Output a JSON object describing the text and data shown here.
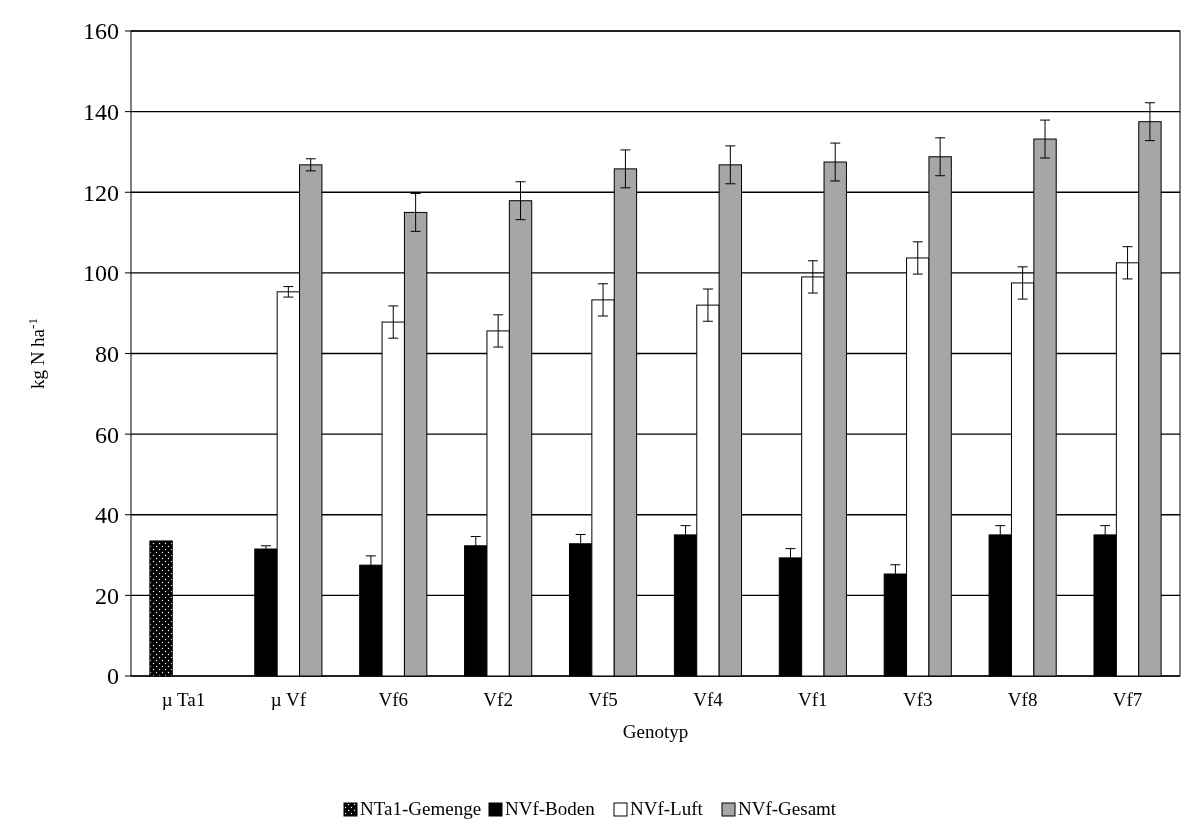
{
  "chart_data": {
    "type": "bar",
    "xlabel": "Genotyp",
    "ylabel": "kg N ha$^{-1}$",
    "categories": [
      "µ Ta1",
      "µ Vf",
      "Vf6",
      "Vf2",
      "Vf5",
      "Vf4",
      "Vf1",
      "Vf3",
      "Vf8",
      "Vf7"
    ],
    "series": [
      {
        "name": "NTa1-Gemenge",
        "color": "#000000",
        "values": [
          33.5,
          null,
          null,
          null,
          null,
          null,
          null,
          null,
          null,
          null
        ]
      },
      {
        "name": "NVf-Boden",
        "color": "#000000",
        "values": [
          null,
          31.5,
          27.5,
          32.3,
          32.8,
          35,
          29.3,
          25.3,
          35,
          35
        ],
        "errors": [
          null,
          0.8,
          2.3,
          2.3,
          2.3,
          2.3,
          2.3,
          2.3,
          2.3,
          2.3
        ]
      },
      {
        "name": "NVf-Luft",
        "color": "#ffffff",
        "values": [
          null,
          95.3,
          87.8,
          85.6,
          93.3,
          92,
          99,
          103.7,
          97.5,
          102.5
        ],
        "errors": [
          null,
          1.3,
          4,
          4,
          4,
          4,
          4,
          4,
          4,
          4
        ]
      },
      {
        "name": "NVf-Gesamt",
        "color": "#a6a6a6",
        "values": [
          null,
          126.8,
          115,
          117.9,
          125.8,
          126.8,
          127.5,
          128.8,
          133.2,
          137.5
        ],
        "errors": [
          null,
          1.5,
          4.7,
          4.7,
          4.7,
          4.7,
          4.7,
          4.7,
          4.7,
          4.7
        ]
      }
    ],
    "ylim": [
      0,
      160
    ],
    "yticks": [
      0,
      20,
      40,
      60,
      80,
      100,
      120,
      140,
      160
    ],
    "grid": "y",
    "legend": "bottom"
  }
}
